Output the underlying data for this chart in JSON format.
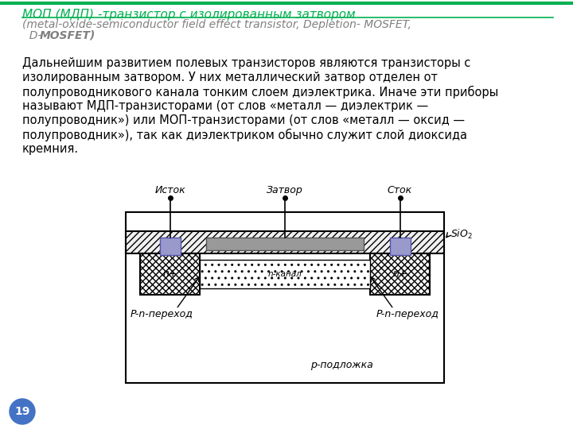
{
  "bg_color": "#ffffff",
  "title_line1": "МОП (МДП) -транзистор с изолированным затвором",
  "title_line2": "(metal-oxide-semiconductor field effect transistor, Depletion- MOSFET,",
  "title_line3_normal": "  D-",
  "title_line3_bold": "MOSFET)",
  "body_lines": [
    "Дальнейшим развитием полевых транзисторов являются транзисторы с",
    "изолированным затвором. У них металлический затвор отделен от",
    "полупроводникового канала тонким слоем диэлектрика. Иначе эти приборы",
    "называют МДП-транзисторами (от слов «металл — диэлектрик —",
    "полупроводник») или МОП-транзисторами (от слов «металл — оксид —",
    "полупроводник»), так как диэлектриком обычно служит слой диоксида",
    "кремния."
  ],
  "page_number": "19",
  "title_color": "#00b050",
  "subtitle_color": "#808080",
  "body_color": "#000000",
  "page_bg": "#4472c4",
  "page_num_color": "#ffffff",
  "green_line_color": "#00b050"
}
